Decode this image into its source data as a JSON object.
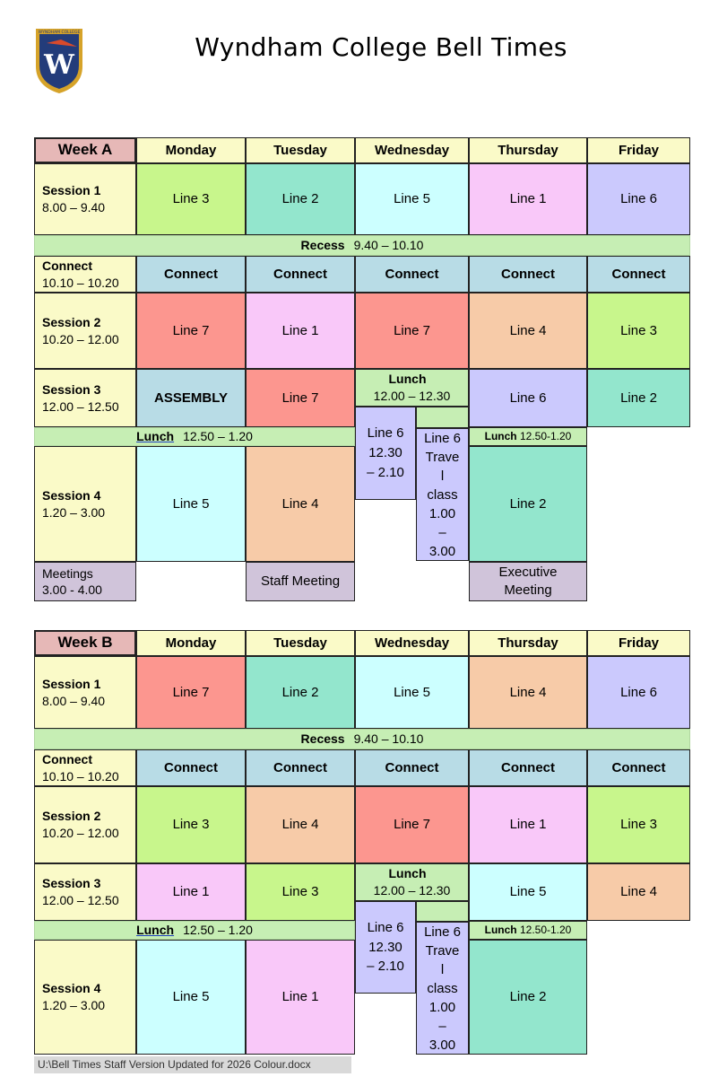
{
  "page": {
    "title": "Wyndham College Bell Times",
    "logo_text": "WYNDHAM COLLEGE",
    "logo_letter": "W"
  },
  "colors": {
    "yellow": "#fafac8",
    "week_header": "#e6b8b7",
    "recess": "#c6eeb4",
    "connect": "#b8dce6",
    "line1": "#f9c8f9",
    "line2": "#93e6cd",
    "line3": "#c8f68c",
    "line4": "#f7cba8",
    "line5": "#ccffff",
    "line6": "#cbc9fd",
    "line7": "#fc968f",
    "meeting": "#d0c4da"
  },
  "days": [
    "Monday",
    "Tuesday",
    "Wednesday",
    "Thursday",
    "Friday"
  ],
  "weekA": {
    "label": "Week A",
    "s1_label": "Session 1",
    "s1_time": "8.00 – 9.40",
    "s1": [
      "Line 3",
      "Line 2",
      "Line 5",
      "Line 1",
      "Line 6"
    ],
    "recess_label": "Recess",
    "recess_time": "9.40 – 10.10",
    "connect_label": "Connect",
    "connect_time": "10.10 – 10.20",
    "connect_cell": "Connect",
    "s2_label": "Session 2",
    "s2_time": "10.20 – 12.00",
    "s2": [
      "Line 7",
      "Line 1",
      "Line 7",
      "Line 4",
      "Line 3"
    ],
    "s3_label": "Session 3",
    "s3_time": "12.00 – 12.50",
    "s3": [
      "ASSEMBLY",
      "Line 7",
      "",
      "Line 6",
      "Line 2"
    ],
    "wed_lunch_label": "Lunch",
    "wed_lunch_time": "12.00 – 12.30",
    "lunch_label": "Lunch",
    "lunch_time": "12.50 – 1.20",
    "thu_lunch": "Lunch",
    "thu_lunch_time": "12.50-1.20",
    "wed_a": [
      "Line 6",
      "12.30",
      "– 2.10"
    ],
    "wed_b": [
      "Line 6",
      "Trave",
      "l",
      "class",
      "1.00",
      "–",
      "3.00"
    ],
    "s4_label": "Session 4",
    "s4_time": "1.20 – 3.00",
    "s4": [
      "Line 5",
      "Line 4",
      "Line 2"
    ],
    "meetings_label": "Meetings",
    "meetings_time": "3.00 - 4.00",
    "staff_meeting": "Staff Meeting",
    "exec_meeting": [
      "Executive",
      "Meeting"
    ]
  },
  "weekB": {
    "label": "Week B",
    "s1_label": "Session 1",
    "s1_time": "8.00 – 9.40",
    "s1": [
      "Line 7",
      "Line 2",
      "Line 5",
      "Line 4",
      "Line 6"
    ],
    "recess_label": "Recess",
    "recess_time": "9.40 – 10.10",
    "connect_label": "Connect",
    "connect_time": "10.10 – 10.20",
    "connect_cell": "Connect",
    "s2_label": "Session 2",
    "s2_time": "10.20 – 12.00",
    "s2": [
      "Line 3",
      "Line 4",
      "Line 7",
      "Line 1",
      "Line 3"
    ],
    "s3_label": "Session 3",
    "s3_time": "12.00 – 12.50",
    "s3": [
      "Line 1",
      "Line 3",
      "",
      "Line 5",
      "Line 4"
    ],
    "wed_lunch_label": "Lunch",
    "wed_lunch_time": "12.00 – 12.30",
    "lunch_label": "Lunch",
    "lunch_time": "12.50 – 1.20",
    "thu_lunch": "Lunch",
    "thu_lunch_time": "12.50-1.20",
    "wed_a": [
      "Line 6",
      "12.30",
      "– 2.10"
    ],
    "wed_b": [
      "Line 6",
      "Trave",
      "l",
      "class",
      "1.00",
      "–",
      "3.00"
    ],
    "s4_label": "Session 4",
    "s4_time": "1.20 – 3.00",
    "s4": [
      "Line 5",
      "Line 1",
      "Line 2"
    ]
  },
  "footer": "U:\\Bell Times Staff Version Updated for 2026 Colour.docx"
}
